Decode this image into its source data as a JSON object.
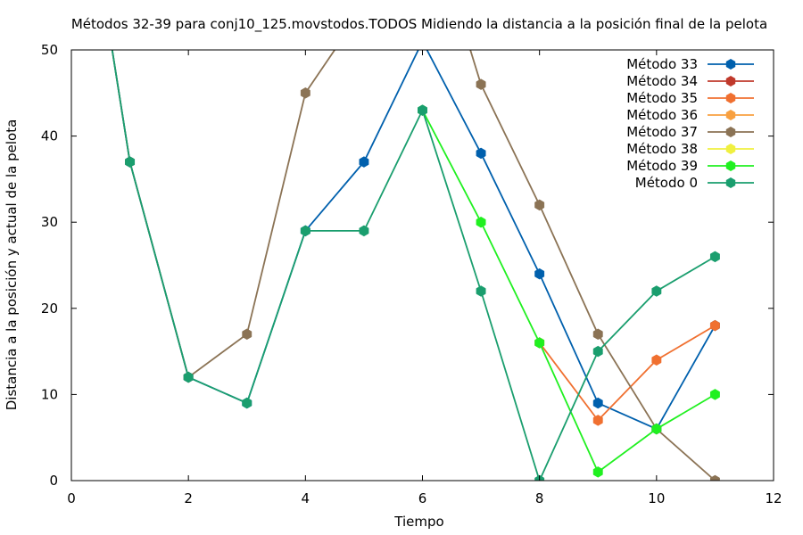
{
  "chart_data": {
    "type": "line",
    "title": "Métodos 32-39 para conj10_125.movstodos.TODOS Midiendo la distancia a la posición final de la pelota",
    "xlabel": "Tiempo",
    "ylabel": "Distancia a la posición y actual de la pelota",
    "xlim": [
      0,
      12
    ],
    "ylim": [
      0,
      50
    ],
    "xticks": [
      0,
      2,
      4,
      6,
      8,
      10,
      12
    ],
    "yticks": [
      0,
      10,
      20,
      30,
      40,
      50
    ],
    "grid": false,
    "legend_position": "top-right",
    "series": [
      {
        "name": "Método 33",
        "color": "#0060ad",
        "points": [
          [
            0,
            80
          ],
          [
            1,
            37
          ],
          [
            2,
            12
          ],
          [
            3,
            9
          ],
          [
            4,
            29
          ],
          [
            5,
            37
          ],
          [
            6,
            51
          ],
          [
            7,
            38
          ],
          [
            8,
            24
          ],
          [
            9,
            9
          ],
          [
            10,
            6
          ],
          [
            11,
            18
          ]
        ]
      },
      {
        "name": "Método 34",
        "color": "#c0392b",
        "points": []
      },
      {
        "name": "Método 35",
        "color": "#f07030",
        "points": [
          [
            8,
            16
          ],
          [
            9,
            7
          ],
          [
            10,
            14
          ],
          [
            11,
            18
          ]
        ]
      },
      {
        "name": "Método 36",
        "color": "#f8a040",
        "points": []
      },
      {
        "name": "Método 37",
        "color": "#8b7355",
        "points": [
          [
            0,
            80
          ],
          [
            1,
            37
          ],
          [
            2,
            12
          ],
          [
            3,
            17
          ],
          [
            4,
            45
          ],
          [
            5,
            55
          ],
          [
            6,
            68
          ],
          [
            7,
            46
          ],
          [
            8,
            32
          ],
          [
            9,
            17
          ],
          [
            10,
            6
          ],
          [
            11,
            0
          ]
        ]
      },
      {
        "name": "Método 38",
        "color": "#f0f040",
        "points": []
      },
      {
        "name": "Método 39",
        "color": "#20f020",
        "points": [
          [
            6,
            43
          ],
          [
            7,
            30
          ],
          [
            8,
            16
          ],
          [
            9,
            1
          ],
          [
            10,
            6
          ],
          [
            11,
            10
          ]
        ]
      },
      {
        "name": "Método 0",
        "color": "#1a9e6e",
        "points": [
          [
            0,
            80
          ],
          [
            1,
            37
          ],
          [
            2,
            12
          ],
          [
            3,
            9
          ],
          [
            4,
            29
          ],
          [
            5,
            29
          ],
          [
            6,
            43
          ],
          [
            7,
            22
          ],
          [
            8,
            0
          ],
          [
            9,
            15
          ],
          [
            10,
            22
          ],
          [
            11,
            26
          ]
        ]
      }
    ]
  }
}
